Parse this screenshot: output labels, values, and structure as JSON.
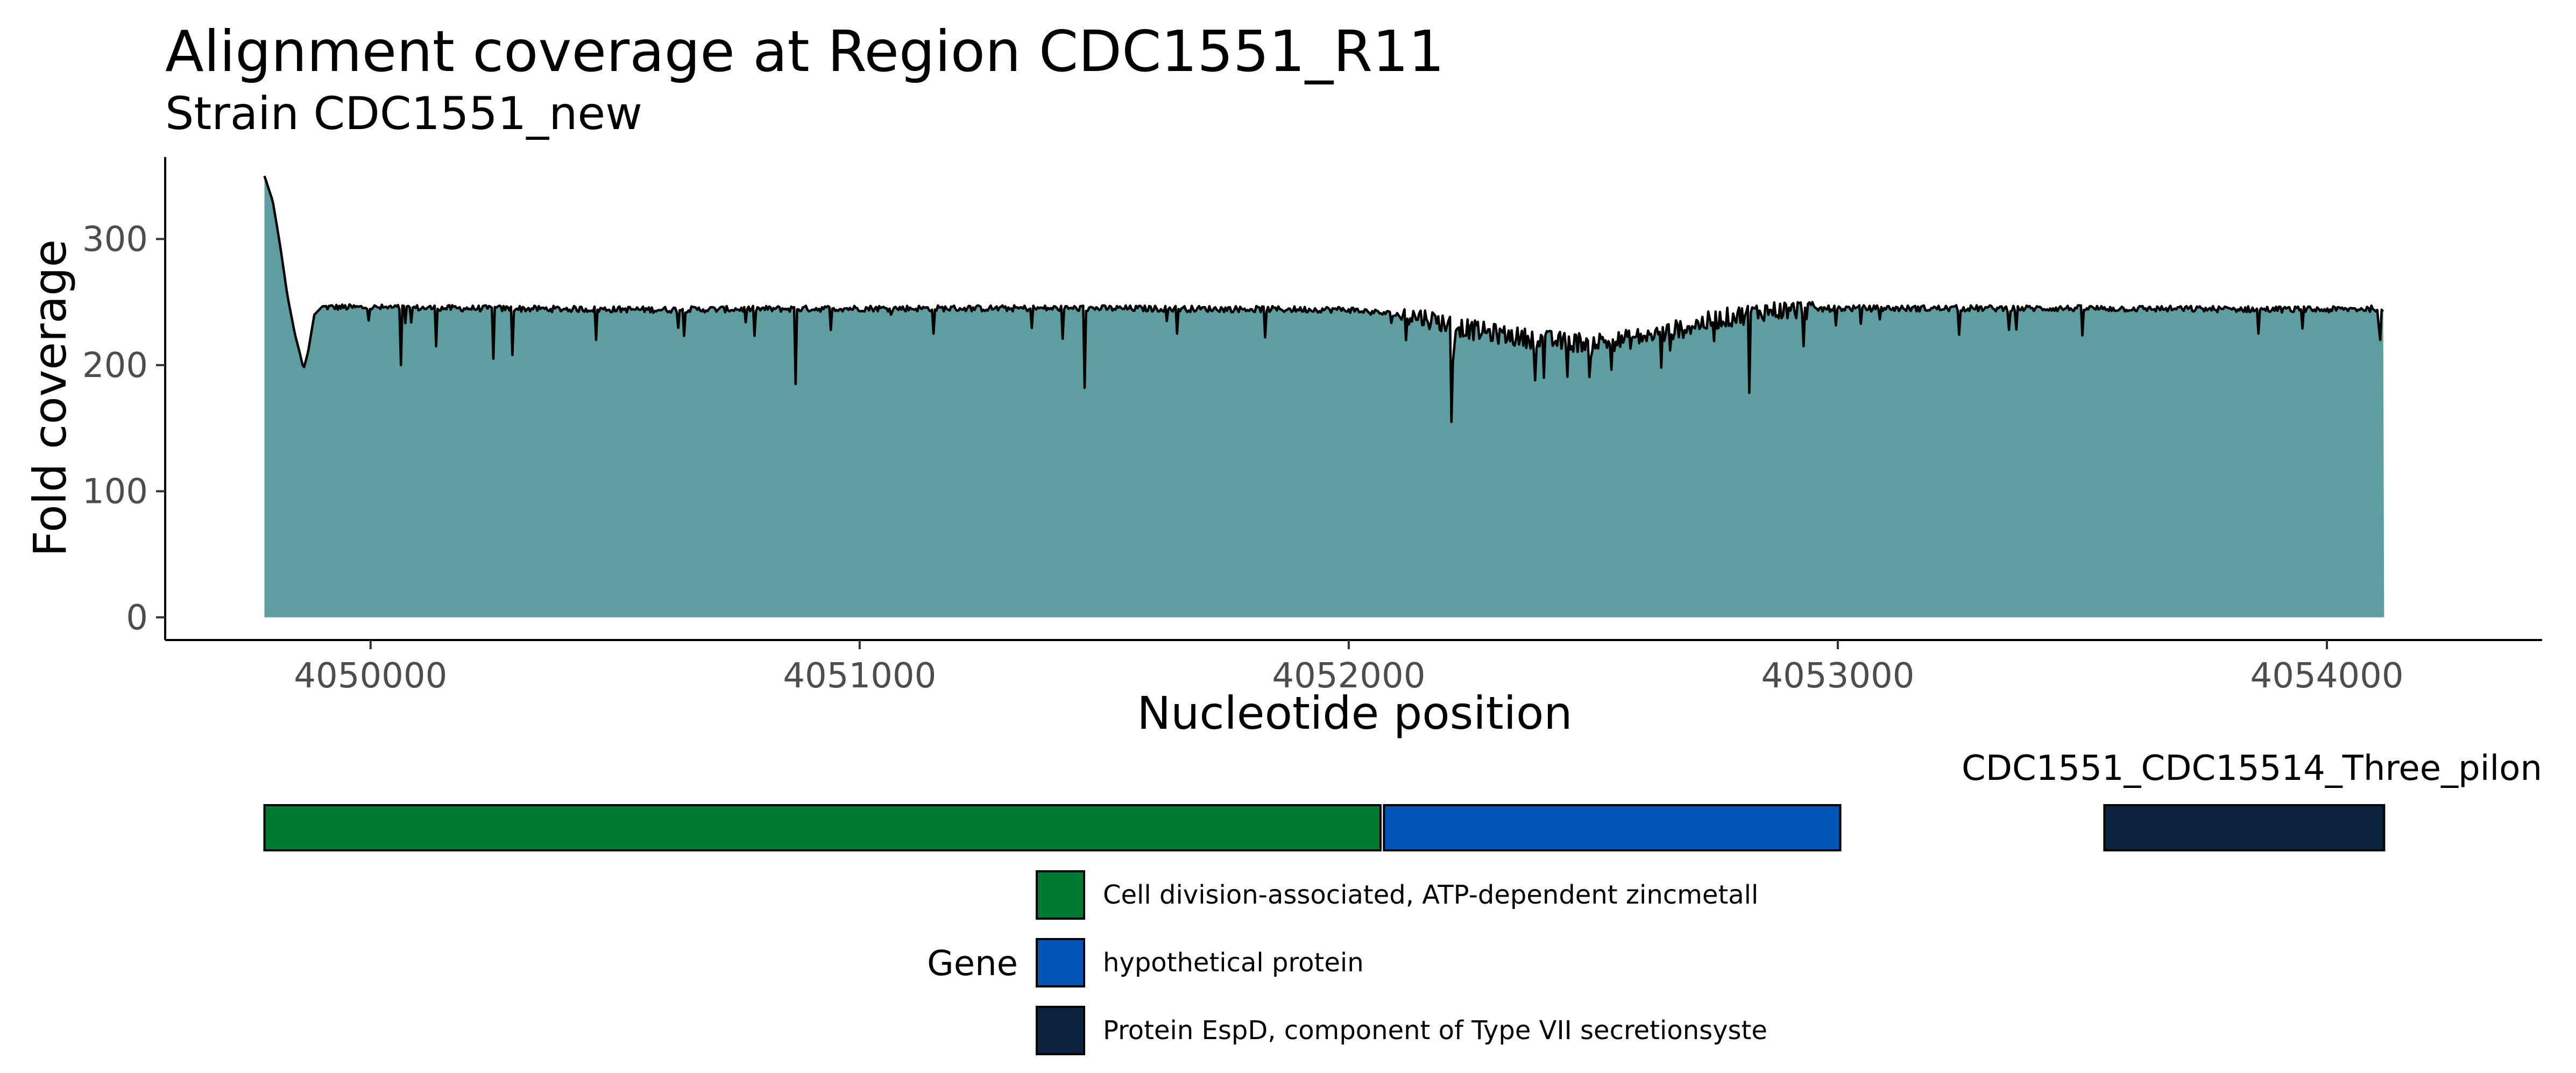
{
  "chart_data": {
    "type": "area",
    "title": "Alignment coverage at Region CDC1551_R11",
    "subtitle": "Strain CDC1551_new",
    "xlabel": "Nucleotide position",
    "ylabel": "Fold coverage",
    "xlim": [
      4049580,
      4054440
    ],
    "ylim": [
      -18,
      365
    ],
    "x_ticks": [
      4050000,
      4051000,
      4052000,
      4053000,
      4054000
    ],
    "y_ticks": [
      0,
      100,
      200,
      300
    ],
    "grid": false,
    "x_range_covered": [
      4049783,
      4054117
    ],
    "fill_color": "#5F9EA0",
    "line_color": "#000000",
    "coverage_profile": [
      {
        "x": 4049783,
        "y": 350
      },
      {
        "x": 4049800,
        "y": 330
      },
      {
        "x": 4049815,
        "y": 295
      },
      {
        "x": 4049830,
        "y": 255
      },
      {
        "x": 4049845,
        "y": 225
      },
      {
        "x": 4049855,
        "y": 210
      },
      {
        "x": 4049863,
        "y": 197
      },
      {
        "x": 4049872,
        "y": 210
      },
      {
        "x": 4049885,
        "y": 240
      },
      {
        "x": 4049900,
        "y": 246
      },
      {
        "x": 4050200,
        "y": 245
      },
      {
        "x": 4050600,
        "y": 244
      },
      {
        "x": 4051000,
        "y": 245
      },
      {
        "x": 4051500,
        "y": 245
      },
      {
        "x": 4052000,
        "y": 244
      },
      {
        "x": 4052150,
        "y": 238
      },
      {
        "x": 4052250,
        "y": 228
      },
      {
        "x": 4052350,
        "y": 222
      },
      {
        "x": 4052450,
        "y": 218
      },
      {
        "x": 4052550,
        "y": 219
      },
      {
        "x": 4052650,
        "y": 226
      },
      {
        "x": 4052750,
        "y": 236
      },
      {
        "x": 4052850,
        "y": 243
      },
      {
        "x": 4053000,
        "y": 245
      },
      {
        "x": 4053500,
        "y": 245
      },
      {
        "x": 4054000,
        "y": 244
      },
      {
        "x": 4054117,
        "y": 245
      }
    ],
    "coverage_dips": [
      {
        "x": 4050063,
        "y": 200
      },
      {
        "x": 4050133,
        "y": 215
      },
      {
        "x": 4050250,
        "y": 205
      },
      {
        "x": 4050290,
        "y": 208
      },
      {
        "x": 4050460,
        "y": 220
      },
      {
        "x": 4050870,
        "y": 185
      },
      {
        "x": 4051150,
        "y": 225
      },
      {
        "x": 4051460,
        "y": 182
      },
      {
        "x": 4051650,
        "y": 225
      },
      {
        "x": 4051830,
        "y": 222
      },
      {
        "x": 4052210,
        "y": 155
      },
      {
        "x": 4052400,
        "y": 190
      },
      {
        "x": 4052640,
        "y": 198
      },
      {
        "x": 4052820,
        "y": 178
      },
      {
        "x": 4052930,
        "y": 215
      },
      {
        "x": 4053350,
        "y": 228
      },
      {
        "x": 4053860,
        "y": 225
      },
      {
        "x": 4054110,
        "y": 220
      }
    ],
    "gene_track": {
      "label": "CDC1551_CDC15514_Three_pilon",
      "genes": [
        {
          "start": 4049783,
          "end": 4052065,
          "name": "Cell division-associated, ATP-dependent zincmetall",
          "color": "#007A33"
        },
        {
          "start": 4052072,
          "end": 4053005,
          "name": "hypothetical protein",
          "color": "#0055B7"
        },
        {
          "start": 4053545,
          "end": 4054117,
          "name": "Protein EspD, component of Type VII secretionsyste",
          "color": "#0C2340"
        }
      ]
    },
    "legend": {
      "title": "Gene",
      "position": "bottom",
      "entries": [
        {
          "label": "Cell division-associated, ATP-dependent zincmetall",
          "color": "#007A33"
        },
        {
          "label": "hypothetical protein",
          "color": "#0055B7"
        },
        {
          "label": "Protein EspD, component of Type VII secretionsyste",
          "color": "#0C2340"
        }
      ]
    }
  }
}
